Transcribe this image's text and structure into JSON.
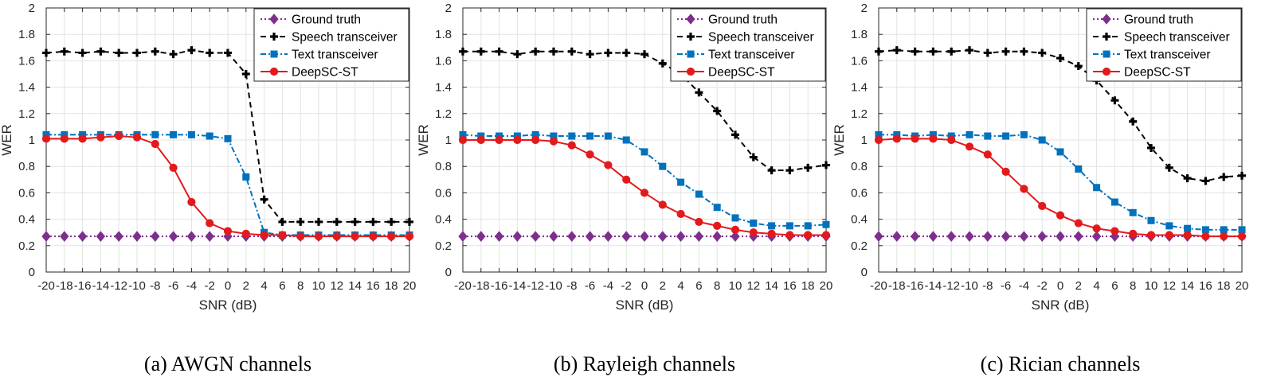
{
  "chart_data": [
    {
      "type": "line",
      "caption": "(a) AWGN channels",
      "xlabel": "SNR (dB)",
      "ylabel": "WER",
      "xlim": [
        -20,
        20
      ],
      "ylim": [
        0,
        2
      ],
      "x": [
        -20,
        -18,
        -16,
        -14,
        -12,
        -10,
        -8,
        -6,
        -4,
        -2,
        0,
        2,
        4,
        6,
        8,
        10,
        12,
        14,
        16,
        18,
        20
      ],
      "x_tick_labels": [
        "-20",
        "-18",
        "-16",
        "-14",
        "-12",
        "-10",
        "-8",
        "-6",
        "-4",
        "-2",
        "0",
        "2",
        "4",
        "6",
        "8",
        "10",
        "12",
        "14",
        "16",
        "18",
        "20"
      ],
      "y_tick_labels": [
        "0",
        "0.2",
        "0.4",
        "0.6",
        "0.8",
        "1",
        "1.2",
        "1.4",
        "1.6",
        "1.8",
        "2"
      ],
      "grid": true,
      "legend_position": "top-right",
      "series": [
        {
          "name": "Ground truth",
          "color": "#7E2F8E",
          "dash": "2,3",
          "marker": "diamond",
          "values": [
            0.27,
            0.27,
            0.27,
            0.27,
            0.27,
            0.27,
            0.27,
            0.27,
            0.27,
            0.27,
            0.27,
            0.27,
            0.27,
            0.27,
            0.27,
            0.27,
            0.27,
            0.27,
            0.27,
            0.27,
            0.27
          ]
        },
        {
          "name": "Speech transceiver",
          "color": "#000000",
          "dash": "7,5",
          "marker": "plus",
          "values": [
            1.66,
            1.67,
            1.66,
            1.67,
            1.66,
            1.66,
            1.67,
            1.65,
            1.68,
            1.66,
            1.66,
            1.5,
            0.55,
            0.38,
            0.38,
            0.38,
            0.38,
            0.38,
            0.38,
            0.38,
            0.38
          ]
        },
        {
          "name": "Text transceiver",
          "color": "#0072BD",
          "dash": "7,3,2,3",
          "marker": "square",
          "values": [
            1.04,
            1.04,
            1.04,
            1.04,
            1.04,
            1.04,
            1.04,
            1.04,
            1.04,
            1.03,
            1.01,
            0.72,
            0.3,
            0.28,
            0.28,
            0.28,
            0.28,
            0.28,
            0.28,
            0.28,
            0.28
          ]
        },
        {
          "name": "DeepSC-ST",
          "color": "#E31A1C",
          "dash": "",
          "marker": "circle",
          "values": [
            1.01,
            1.01,
            1.01,
            1.02,
            1.03,
            1.02,
            0.97,
            0.79,
            0.53,
            0.37,
            0.31,
            0.29,
            0.28,
            0.28,
            0.27,
            0.27,
            0.27,
            0.27,
            0.27,
            0.27,
            0.27
          ]
        }
      ]
    },
    {
      "type": "line",
      "caption": "(b) Rayleigh channels",
      "xlabel": "SNR (dB)",
      "ylabel": "WER",
      "xlim": [
        -20,
        20
      ],
      "ylim": [
        0,
        2
      ],
      "x": [
        -20,
        -18,
        -16,
        -14,
        -12,
        -10,
        -8,
        -6,
        -4,
        -2,
        0,
        2,
        4,
        6,
        8,
        10,
        12,
        14,
        16,
        18,
        20
      ],
      "x_tick_labels": [
        "-20",
        "-18",
        "-16",
        "-14",
        "-12",
        "-10",
        "-8",
        "-6",
        "-4",
        "-2",
        "0",
        "2",
        "4",
        "6",
        "8",
        "10",
        "12",
        "14",
        "16",
        "18",
        "20"
      ],
      "y_tick_labels": [
        "0",
        "0.2",
        "0.4",
        "0.6",
        "0.8",
        "1",
        "1.2",
        "1.4",
        "1.6",
        "1.8",
        "2"
      ],
      "grid": true,
      "legend_position": "top-right",
      "series": [
        {
          "name": "Ground truth",
          "color": "#7E2F8E",
          "dash": "2,3",
          "marker": "diamond",
          "values": [
            0.27,
            0.27,
            0.27,
            0.27,
            0.27,
            0.27,
            0.27,
            0.27,
            0.27,
            0.27,
            0.27,
            0.27,
            0.27,
            0.27,
            0.27,
            0.27,
            0.27,
            0.27,
            0.27,
            0.27,
            0.27
          ]
        },
        {
          "name": "Speech transceiver",
          "color": "#000000",
          "dash": "7,5",
          "marker": "plus",
          "values": [
            1.67,
            1.67,
            1.67,
            1.65,
            1.67,
            1.67,
            1.67,
            1.65,
            1.66,
            1.66,
            1.65,
            1.58,
            1.5,
            1.36,
            1.22,
            1.04,
            0.87,
            0.77,
            0.77,
            0.79,
            0.81
          ]
        },
        {
          "name": "Text transceiver",
          "color": "#0072BD",
          "dash": "7,3,2,3",
          "marker": "square",
          "values": [
            1.04,
            1.03,
            1.03,
            1.03,
            1.04,
            1.03,
            1.03,
            1.03,
            1.03,
            1.0,
            0.91,
            0.8,
            0.68,
            0.59,
            0.49,
            0.41,
            0.37,
            0.35,
            0.35,
            0.35,
            0.36
          ]
        },
        {
          "name": "DeepSC-ST",
          "color": "#E31A1C",
          "dash": "",
          "marker": "circle",
          "values": [
            1.0,
            1.0,
            1.0,
            1.0,
            1.0,
            0.99,
            0.96,
            0.89,
            0.81,
            0.7,
            0.6,
            0.51,
            0.44,
            0.38,
            0.35,
            0.32,
            0.3,
            0.29,
            0.28,
            0.28,
            0.28
          ]
        }
      ]
    },
    {
      "type": "line",
      "caption": "(c) Rician channels",
      "xlabel": "SNR (dB)",
      "ylabel": "WER",
      "xlim": [
        -20,
        20
      ],
      "ylim": [
        0,
        2
      ],
      "x": [
        -20,
        -18,
        -16,
        -14,
        -12,
        -10,
        -8,
        -6,
        -4,
        -2,
        0,
        2,
        4,
        6,
        8,
        10,
        12,
        14,
        16,
        18,
        20
      ],
      "x_tick_labels": [
        "-20",
        "-18",
        "-16",
        "-14",
        "-12",
        "-10",
        "-8",
        "-6",
        "-4",
        "-2",
        "0",
        "2",
        "4",
        "6",
        "8",
        "10",
        "12",
        "14",
        "16",
        "18",
        "20"
      ],
      "y_tick_labels": [
        "0",
        "0.2",
        "0.4",
        "0.6",
        "0.8",
        "1",
        "1.2",
        "1.4",
        "1.6",
        "1.8",
        "2"
      ],
      "grid": true,
      "legend_position": "top-right",
      "series": [
        {
          "name": "Ground truth",
          "color": "#7E2F8E",
          "dash": "2,3",
          "marker": "diamond",
          "values": [
            0.27,
            0.27,
            0.27,
            0.27,
            0.27,
            0.27,
            0.27,
            0.27,
            0.27,
            0.27,
            0.27,
            0.27,
            0.27,
            0.27,
            0.27,
            0.27,
            0.27,
            0.27,
            0.27,
            0.27,
            0.27
          ]
        },
        {
          "name": "Speech transceiver",
          "color": "#000000",
          "dash": "7,5",
          "marker": "plus",
          "values": [
            1.67,
            1.68,
            1.67,
            1.67,
            1.67,
            1.68,
            1.66,
            1.67,
            1.67,
            1.66,
            1.62,
            1.56,
            1.45,
            1.3,
            1.14,
            0.94,
            0.79,
            0.71,
            0.69,
            0.72,
            0.73
          ]
        },
        {
          "name": "Text transceiver",
          "color": "#0072BD",
          "dash": "7,3,2,3",
          "marker": "square",
          "values": [
            1.04,
            1.04,
            1.03,
            1.04,
            1.03,
            1.04,
            1.03,
            1.03,
            1.04,
            1.0,
            0.91,
            0.78,
            0.64,
            0.53,
            0.45,
            0.39,
            0.35,
            0.33,
            0.32,
            0.32,
            0.32
          ]
        },
        {
          "name": "DeepSC-ST",
          "color": "#E31A1C",
          "dash": "",
          "marker": "circle",
          "values": [
            1.0,
            1.01,
            1.01,
            1.01,
            1.0,
            0.95,
            0.89,
            0.76,
            0.63,
            0.5,
            0.43,
            0.37,
            0.33,
            0.31,
            0.29,
            0.28,
            0.28,
            0.28,
            0.27,
            0.27,
            0.27
          ]
        }
      ]
    }
  ]
}
